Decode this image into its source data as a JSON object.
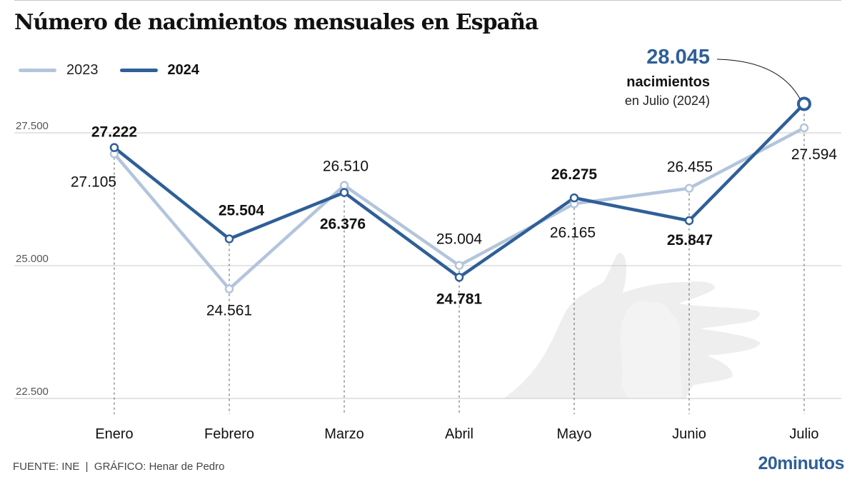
{
  "header": {
    "title": "Número de nacimientos mensuales en España"
  },
  "legend": [
    {
      "label": "2023",
      "color": "#b3c5dc"
    },
    {
      "label": "2024",
      "color": "#2f5f98"
    }
  ],
  "annotation": {
    "value": "28.045",
    "line1": "nacimientos",
    "line2": "en Julio (2024)"
  },
  "footer": {
    "source": "FUENTE: INE  |  GRÁFICO: Henar de Pedro",
    "logo": "20minutos"
  },
  "colors": {
    "series_2023": "#b3c5dc",
    "series_2024": "#2f5f98",
    "grid": "#c8c8c8",
    "accent": "#2f5f98"
  },
  "chart_data": {
    "type": "line",
    "title": "Número de nacimientos mensuales en España",
    "xlabel": "",
    "ylabel": "",
    "categories": [
      "Enero",
      "Febrero",
      "Marzo",
      "Abril",
      "Mayo",
      "Junio",
      "Julio"
    ],
    "series": [
      {
        "name": "2023",
        "values": [
          27105,
          24561,
          26510,
          25004,
          26165,
          26455,
          27594
        ],
        "labels": [
          "27.105",
          "24.561",
          "26.510",
          "25.004",
          "26.165",
          "26.455",
          "27.594"
        ]
      },
      {
        "name": "2024",
        "values": [
          27222,
          25504,
          26376,
          24781,
          26275,
          25847,
          28045
        ],
        "labels": [
          "27.222",
          "25.504",
          "26.376",
          "24.781",
          "26.275",
          "25.847",
          "28.045"
        ]
      }
    ],
    "yticks": [
      22500,
      25000,
      27500
    ],
    "ytick_labels": [
      "22.500",
      "25.000",
      "27.500"
    ],
    "ylim": [
      22500,
      28500
    ],
    "grid": true,
    "legend_position": "top-left",
    "source": "INE"
  }
}
